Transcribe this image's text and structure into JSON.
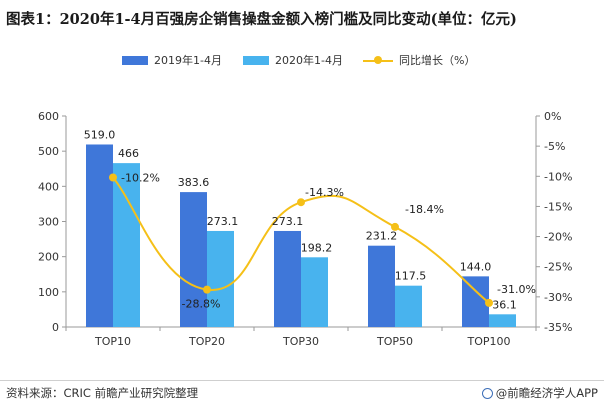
{
  "title": "图表1：2020年1-4月百强房企销售操盘金额入榜门槛及同比变动(单位：亿元)",
  "source": "资料来源：CRIC 前瞻产业研究院整理",
  "brand": "@前瞻经济学人APP",
  "colors": {
    "series1": "#3f77d9",
    "series2": "#48b3ee",
    "line": "#f5c018",
    "axis": "#9a9a9a"
  },
  "chart_data": {
    "type": "bar",
    "categories": [
      "TOP10",
      "TOP20",
      "TOP30",
      "TOP50",
      "TOP100"
    ],
    "series": [
      {
        "name": "2019年1-4月",
        "values": [
          519.0,
          383.6,
          273.1,
          231.2,
          144.0
        ],
        "labels": [
          "519.0",
          "383.6",
          "273.1",
          "231.2",
          "144.0"
        ]
      },
      {
        "name": "2020年1-4月",
        "values": [
          466,
          273.1,
          198.2,
          117.5,
          36.1
        ],
        "labels": [
          "466",
          "273.1",
          "198.2",
          "117.5",
          "36.1"
        ]
      }
    ],
    "line_series": {
      "name": "同比增长（%）",
      "axis": "right",
      "values": [
        -10.2,
        -28.8,
        -14.3,
        -18.4,
        -31.0
      ],
      "labels": [
        "-10.2%",
        "-28.8%",
        "-14.3%",
        "-18.4%",
        "-31.0%"
      ]
    },
    "ylim": [
      0,
      600
    ],
    "y_ticks": [
      "0",
      "100",
      "200",
      "300",
      "400",
      "500",
      "600"
    ],
    "y2lim": [
      -35,
      0
    ],
    "y2_ticks": [
      "0%",
      "-5%",
      "-10%",
      "-15%",
      "-20%",
      "-25%",
      "-30%",
      "-35%"
    ],
    "legend": "top-center",
    "grid": false
  }
}
